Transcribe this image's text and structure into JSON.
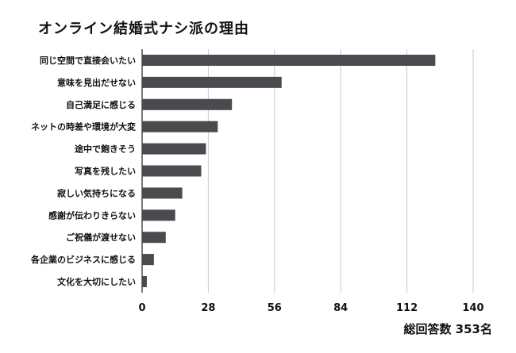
{
  "chart_data": {
    "type": "bar",
    "orientation": "horizontal",
    "title": "オンライン結婚式ナシ派の理由",
    "categories": [
      "同じ空間で直接会いたい",
      "意味を見出だせない",
      "自己満足に感じる",
      "ネットの時差や環境が大変",
      "途中で飽きそう",
      "写真を残したい",
      "寂しい気持ちになる",
      "感謝が伝わりきらない",
      "ご祝儀が渡せない",
      "各企業のビジネスに感じる",
      "文化を大切にしたい"
    ],
    "values": [
      124,
      59,
      38,
      32,
      27,
      25,
      17,
      14,
      10,
      5,
      2
    ],
    "xlim": [
      0,
      140
    ],
    "xticks": [
      "0",
      "28",
      "56",
      "84",
      "112",
      "140"
    ],
    "grid": true,
    "bar_color": "#4a4a4f",
    "footnote": "総回答数 353名"
  }
}
